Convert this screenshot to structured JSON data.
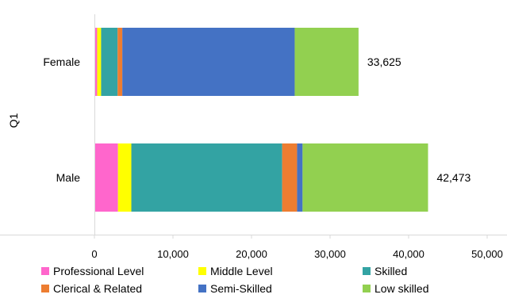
{
  "chart_data": {
    "type": "bar",
    "orientation": "horizontal",
    "stacked": true,
    "title": "",
    "xlabel": "",
    "ylabel": "Q1",
    "xlim": [
      0,
      50000
    ],
    "xticks": [
      0,
      10000,
      20000,
      30000,
      40000,
      50000
    ],
    "xtick_labels": [
      "0",
      "10,000",
      "20,000",
      "30,000",
      "40,000",
      "50,000"
    ],
    "grid": false,
    "legend_position": "bottom",
    "categories": [
      "Female",
      "Male"
    ],
    "series": [
      {
        "name": "Professional Level",
        "color": "#FF66CC",
        "values": [
          350,
          3000
        ]
      },
      {
        "name": "Middle Level",
        "color": "#FFFF00",
        "values": [
          500,
          1700
        ]
      },
      {
        "name": "Skilled",
        "color": "#33A3A3",
        "values": [
          2100,
          19200
        ]
      },
      {
        "name": "Clerical & Related",
        "color": "#ED7D31",
        "values": [
          600,
          1900
        ]
      },
      {
        "name": "Semi-Skilled",
        "color": "#4472C4",
        "values": [
          21950,
          700
        ]
      },
      {
        "name": "Low skilled",
        "color": "#92D050",
        "values": [
          8125,
          15973
        ]
      }
    ],
    "totals": [
      "33,625",
      "42,473"
    ],
    "total_values": [
      33625,
      42473
    ]
  }
}
